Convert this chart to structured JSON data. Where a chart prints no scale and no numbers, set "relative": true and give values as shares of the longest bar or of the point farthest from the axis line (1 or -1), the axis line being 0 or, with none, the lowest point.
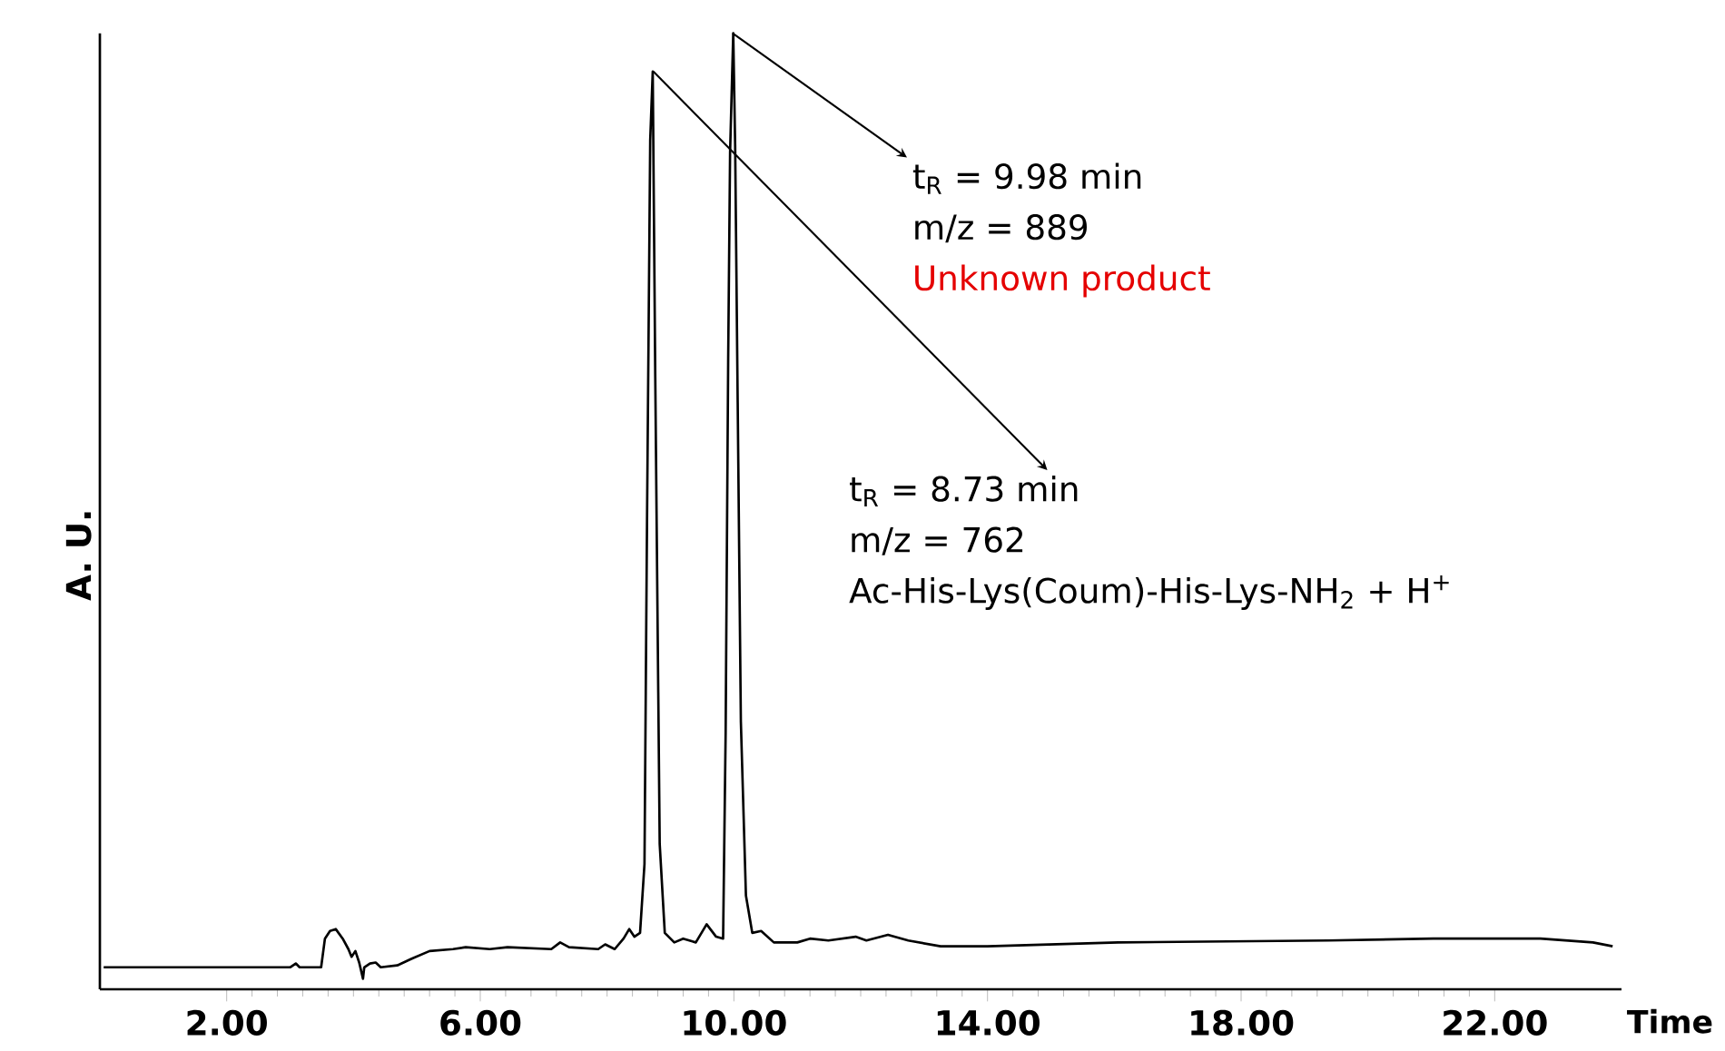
{
  "chart_data": {
    "type": "line",
    "xlabel": "Time",
    "ylabel": "A. U.",
    "relative": true,
    "color": "#000000",
    "xlim": [
      0,
      24
    ],
    "xticks": [
      {
        "value": 2,
        "label": "2.00"
      },
      {
        "value": 6,
        "label": "6.00"
      },
      {
        "value": 10,
        "label": "10.00"
      },
      {
        "value": 14,
        "label": "14.00"
      },
      {
        "value": 18,
        "label": "18.00"
      },
      {
        "value": 22,
        "label": "22.00"
      }
    ],
    "x": [
      0.06,
      3.0,
      3.09,
      3.15,
      3.49,
      3.55,
      3.63,
      3.72,
      3.83,
      3.92,
      3.97,
      4.03,
      4.09,
      4.15,
      4.17,
      4.26,
      4.35,
      4.43,
      4.69,
      4.92,
      5.2,
      5.57,
      5.77,
      6.15,
      6.43,
      7.12,
      7.26,
      7.4,
      7.86,
      7.97,
      8.12,
      8.26,
      8.35,
      8.43,
      8.52,
      8.59,
      8.63,
      8.68,
      8.72,
      8.76,
      8.83,
      8.91,
      9.06,
      9.2,
      9.4,
      9.57,
      9.72,
      9.83,
      9.87,
      9.91,
      9.94,
      9.99,
      10.02,
      10.06,
      10.11,
      10.19,
      10.29,
      10.43,
      10.63,
      11.0,
      11.2,
      11.49,
      11.92,
      12.09,
      12.43,
      12.75,
      13.26,
      14.0,
      16.06,
      19.37,
      21.03,
      22.72,
      23.55,
      23.86
    ],
    "values": [
      0.023,
      0.023,
      0.027,
      0.023,
      0.023,
      0.053,
      0.061,
      0.063,
      0.053,
      0.042,
      0.034,
      0.04,
      0.028,
      0.011,
      0.023,
      0.027,
      0.028,
      0.023,
      0.025,
      0.032,
      0.04,
      0.042,
      0.044,
      0.042,
      0.044,
      0.042,
      0.049,
      0.044,
      0.042,
      0.047,
      0.042,
      0.053,
      0.063,
      0.055,
      0.059,
      0.131,
      0.491,
      0.888,
      0.96,
      0.64,
      0.152,
      0.059,
      0.049,
      0.053,
      0.049,
      0.068,
      0.055,
      0.053,
      0.269,
      0.659,
      0.875,
      1.0,
      0.883,
      0.614,
      0.28,
      0.098,
      0.059,
      0.061,
      0.049,
      0.049,
      0.053,
      0.051,
      0.055,
      0.051,
      0.057,
      0.051,
      0.045,
      0.045,
      0.049,
      0.051,
      0.053,
      0.053,
      0.049,
      0.045
    ],
    "annotations": [
      {
        "text": "t$_{R}$ = 9.98 min",
        "x": 9.98,
        "y": 1.0
      },
      "m/z = 889",
      "Unknown product",
      {
        "text": "t$_{R}$ = 8.73 min",
        "x": 8.73,
        "y": 0.96
      },
      "m/z = 762",
      "Ac-His-Lys(Coum)-His-Lys-NH$_{2}$ + H$^{+}$"
    ]
  }
}
